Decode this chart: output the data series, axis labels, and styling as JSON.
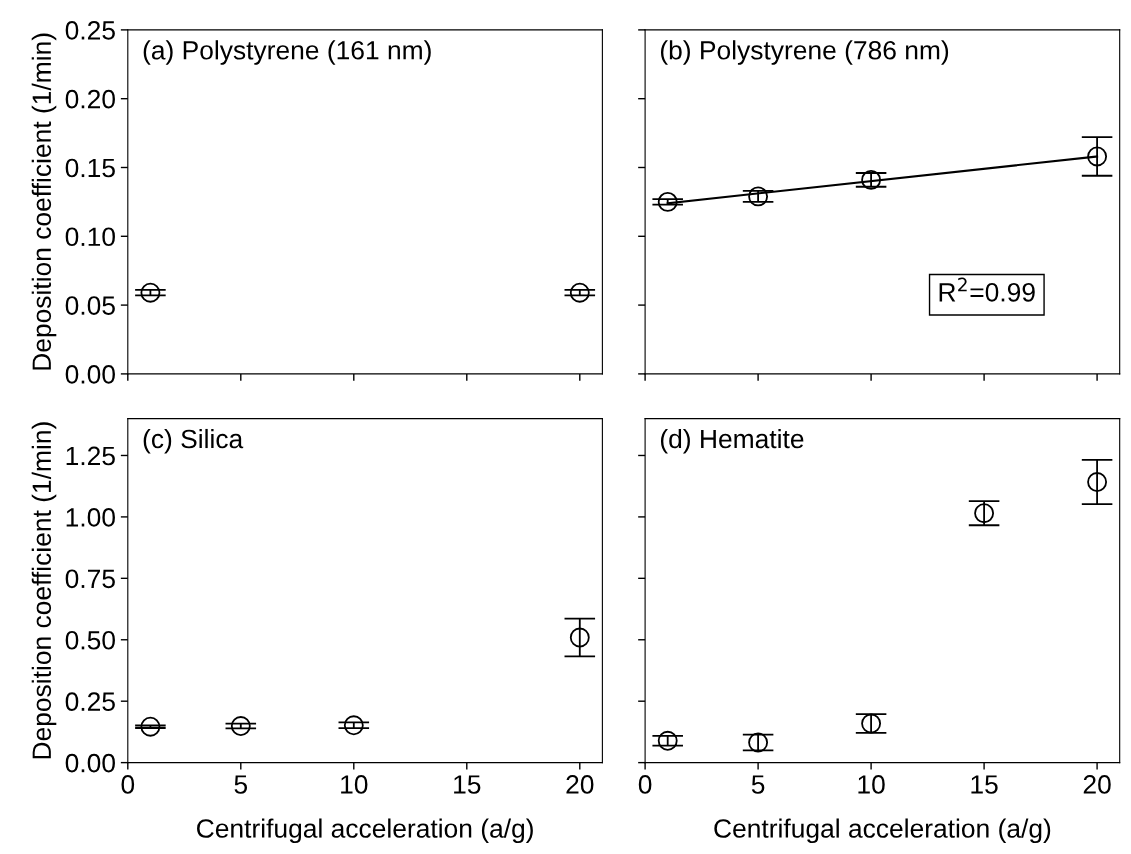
{
  "chart_data": [
    {
      "type": "scatter",
      "title": "(a) Polystyrene (161 nm)",
      "ylabel": "Deposition coefficient (1/min)",
      "xlim": [
        0,
        21
      ],
      "xticks": [
        0,
        5,
        10,
        15,
        20
      ],
      "ylim": [
        0,
        0.25
      ],
      "yticks": [
        {
          "value": 0,
          "label": "0.00"
        },
        {
          "value": 0.05,
          "label": "0.05"
        },
        {
          "value": 0.1,
          "label": "0.10"
        },
        {
          "value": 0.15,
          "label": "0.15"
        },
        {
          "value": 0.2,
          "label": "0.20"
        },
        {
          "value": 0.25,
          "label": "0.25"
        }
      ],
      "tick_labels": "y",
      "marker": "circle",
      "series": [
        {
          "color": "#000000",
          "x": [
            1,
            20
          ],
          "values": [
            0.059,
            0.059
          ],
          "errors": [
            0.002,
            0.002
          ]
        }
      ]
    },
    {
      "type": "scatter",
      "title": "(b) Polystyrene (786 nm)",
      "xlim": [
        0,
        21
      ],
      "xticks": [
        0,
        5,
        10,
        15,
        20
      ],
      "ylim": [
        0,
        0.25
      ],
      "yticks": [
        0,
        0.05,
        0.1,
        0.15,
        0.2,
        0.25
      ],
      "tick_labels": false,
      "marker": "circle",
      "annotations": [
        "R$^{2}$=0.99"
      ],
      "series": [
        {
          "color": "#000000",
          "x": [
            1,
            5,
            10,
            20
          ],
          "values": [
            0.125,
            0.129,
            0.141,
            0.158
          ],
          "errors": [
            0.002,
            0.004,
            0.005,
            0.014
          ]
        },
        {
          "type": "line",
          "marker": "none",
          "color": "#000000",
          "x": [
            1,
            20
          ],
          "values": [
            0.124,
            0.158
          ]
        }
      ]
    },
    {
      "type": "scatter",
      "title": "(c) Silica",
      "xlabel": "Centrifugal acceleration (a/g)",
      "ylabel": "Deposition coefficient (1/min)",
      "xlim": [
        0,
        21
      ],
      "xticks": [
        0,
        5,
        10,
        15,
        20
      ],
      "ylim": [
        0,
        1.4
      ],
      "yticks": [
        {
          "value": 0,
          "label": "0.00"
        },
        {
          "value": 0.25,
          "label": "0.25"
        },
        {
          "value": 0.5,
          "label": "0.50"
        },
        {
          "value": 0.75,
          "label": "0.75"
        },
        {
          "value": 1.0,
          "label": "1.00"
        },
        {
          "value": 1.25,
          "label": "1.25"
        }
      ],
      "marker": "circle",
      "series": [
        {
          "color": "#000000",
          "x": [
            1,
            5,
            10,
            20
          ],
          "values": [
            0.146,
            0.149,
            0.152,
            0.509
          ],
          "errors": [
            0.005,
            0.01,
            0.012,
            0.077
          ]
        }
      ]
    },
    {
      "type": "scatter",
      "title": "(d) Hematite",
      "xlabel": "Centrifugal acceleration (a/g)",
      "xlim": [
        0,
        21
      ],
      "xticks": [
        0,
        5,
        10,
        15,
        20
      ],
      "ylim": [
        0,
        1.4
      ],
      "yticks": [
        0,
        0.25,
        0.5,
        0.75,
        1.0,
        1.25
      ],
      "tick_labels": "x",
      "marker": "circle",
      "series": [
        {
          "color": "#000000",
          "x": [
            1,
            5,
            10,
            15,
            20
          ],
          "values": [
            0.089,
            0.082,
            0.159,
            1.015,
            1.142
          ],
          "errors": [
            0.02,
            0.032,
            0.038,
            0.049,
            0.09
          ]
        }
      ]
    }
  ]
}
